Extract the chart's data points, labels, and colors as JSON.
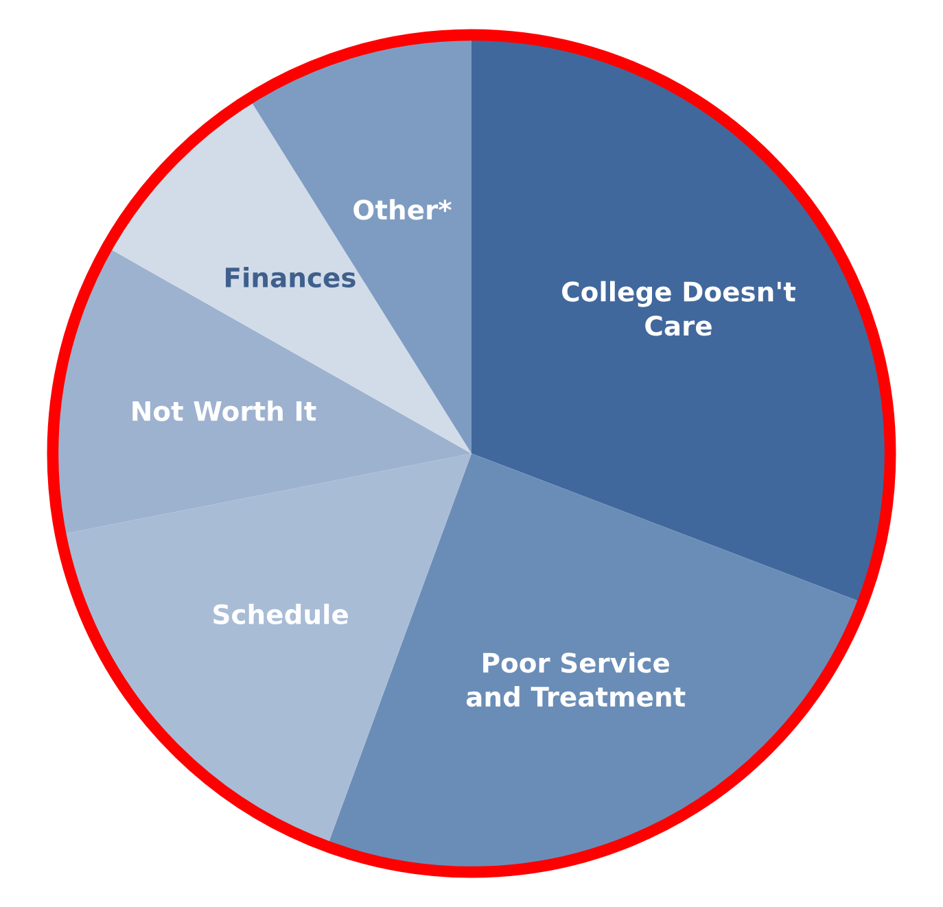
{
  "chart_data": {
    "type": "pie",
    "categories": [
      "College Doesn't\nCare",
      "Poor Service\nand Treatment",
      "Schedule",
      "Not Worth It",
      "Finances",
      "Other*"
    ],
    "values": [
      30.8,
      24.8,
      16.3,
      11.3,
      7.9,
      8.9
    ],
    "colors": [
      "#41689c",
      "#6a8db7",
      "#a9bcd6",
      "#9db2cf",
      "#d2dce8",
      "#7e9cc2"
    ],
    "legend": false
  }
}
